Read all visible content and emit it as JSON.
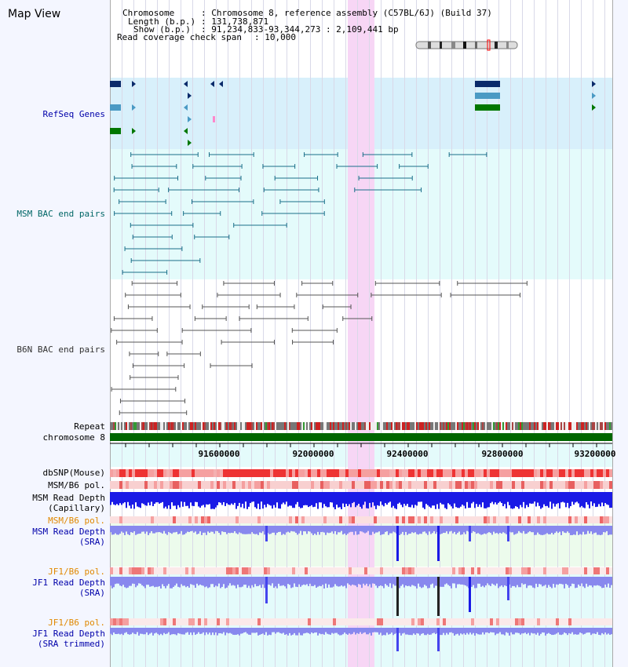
{
  "window": {
    "title": "Map View"
  },
  "info": {
    "chromosome_label": "Chromosome",
    "chromosome_value": ": Chromosome 8, reference assembly (C57BL/6J) (Build 37)",
    "length_label": "Length (b.p.)",
    "length_value": ": 131,738,871",
    "show_label": "Show (b.p.)",
    "show_value": ": 91,234,833-93,344,273 : 2,109,441 bp",
    "coverage_label": "Read coverage check span",
    "coverage_value": ": 10,000"
  },
  "tracks": {
    "refseq": "RefSeq Genes",
    "msm_bac": "MSM BAC end pairs",
    "b6n_bac": "B6N BAC end pairs",
    "repeat": "Repeat",
    "chromosome": "chromosome 8",
    "dbsnp": "dbSNP(Mouse)",
    "msm_b6_pol_1": "MSM/B6 pol.",
    "msm_read_depth_cap": "MSM Read Depth",
    "msm_read_depth_cap_sub": "(Capillary)",
    "msm_b6_pol_2": "MSM/B6 pol.",
    "msm_read_depth_sra": "MSM Read Depth",
    "msm_read_depth_sra_sub": "(SRA)",
    "jf1_b6_pol_1": "JF1/B6 pol.",
    "jf1_read_depth_sra": "JF1 Read Depth",
    "jf1_read_depth_sra_sub": "(SRA)",
    "jf1_b6_pol_2": "JF1/B6 pol.",
    "jf1_read_depth_trim": "JF1 Read Depth",
    "jf1_read_depth_trim_sub": "(SRA trimmed)"
  },
  "axis": {
    "ticks": [
      "91600000",
      "92000000",
      "92400000",
      "92800000",
      "93200000"
    ]
  },
  "colors": {
    "highlight": "#f7d6f5",
    "refseq_bg": "#d8f0fb",
    "msm_bg": "#e4fbfb",
    "chromosome_bar": "#006600",
    "read_depth_cap": "#1a1ae6",
    "read_depth_sra": "#8888ee"
  }
}
